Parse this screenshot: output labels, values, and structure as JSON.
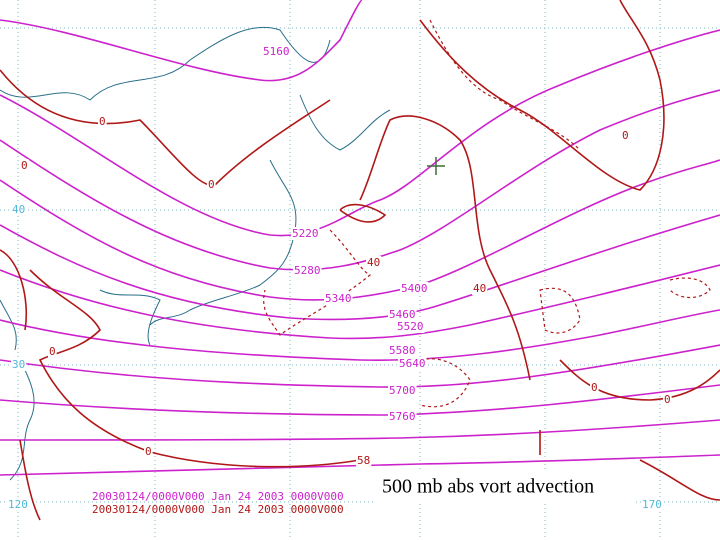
{
  "map": {
    "caption": "500 mb abs vort advection",
    "valid_time": [
      "20030124/0000V000 Jan 24 2003 0000V000",
      "20030124/0000V000 Jan 24 2003 0000V000"
    ],
    "height_contour_labels": [
      "5160",
      "5220",
      "5280",
      "5340",
      "5400",
      "5460",
      "5520",
      "5580",
      "5640",
      "5700",
      "5760"
    ],
    "vorticity_labels": [
      "0",
      "0",
      "0",
      "0",
      "0",
      "0",
      "0",
      "0",
      "40",
      "40",
      "58"
    ],
    "grid_labels": [
      "40",
      "30",
      "120",
      "170"
    ]
  }
}
